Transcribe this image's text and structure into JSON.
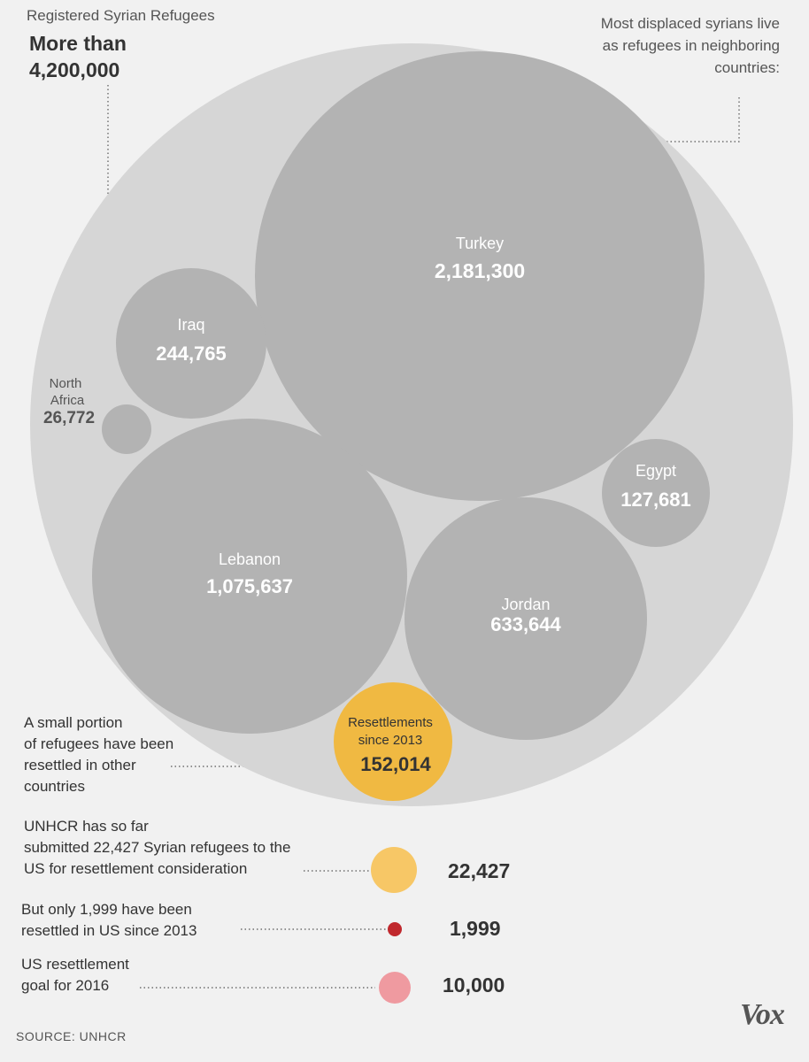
{
  "header": {
    "label": "Registered Syrian Refugees",
    "total_line1": "More than",
    "total_line2": "4,200,000",
    "neighbor_note": [
      "Most displaced syrians live",
      "as refugees in neighboring",
      "countries:"
    ]
  },
  "chart_data": {
    "type": "bubble",
    "total": {
      "name": "Registered Syrian Refugees",
      "value": 4200000,
      "display": "More than 4,200,000"
    },
    "bubbles": [
      {
        "name": "Turkey",
        "value": 2181300,
        "display": "2,181,300"
      },
      {
        "name": "Lebanon",
        "value": 1075637,
        "display": "1,075,637"
      },
      {
        "name": "Jordan",
        "value": 633644,
        "display": "633,644"
      },
      {
        "name": "Iraq",
        "value": 244765,
        "display": "244,765"
      },
      {
        "name": "Egypt",
        "value": 127681,
        "display": "127,681"
      },
      {
        "name": "North Africa",
        "value": 26772,
        "display": "26,772"
      },
      {
        "name": "Resettlements since 2013",
        "value": 152014,
        "display": "152,014"
      }
    ],
    "us_comparison": [
      {
        "name": "Submitted to US",
        "value": 22427,
        "display": "22,427"
      },
      {
        "name": "Resettled in US since 2013",
        "value": 1999,
        "display": "1,999"
      },
      {
        "name": "US resettlement goal for 2016",
        "value": 10000,
        "display": "10,000"
      }
    ],
    "colors": {
      "outer": "#d6d6d6",
      "country": "#b3b3b3",
      "resettlement": "#f0b942",
      "submitted": "#f7c766",
      "resettled_us": "#c0282d",
      "goal": "#ef9aa0"
    }
  },
  "notes": {
    "resettled_other": [
      "A small portion",
      "of refugees have been",
      "resettled in other",
      "countries"
    ],
    "submitted": [
      "UNHCR has so far",
      "submitted 22,427 Syrian refugees to the",
      "US for resettlement consideration"
    ],
    "resettled_us": [
      "But only 1,999 have been",
      "resettled in US since 2013"
    ],
    "goal": [
      "US resettlement",
      "goal for 2016"
    ]
  },
  "resettle_label": [
    "Resettlements",
    "since 2013"
  ],
  "north_africa_label": [
    "North",
    "Africa"
  ],
  "source": "SOURCE: UNHCR",
  "brand": "Vox"
}
